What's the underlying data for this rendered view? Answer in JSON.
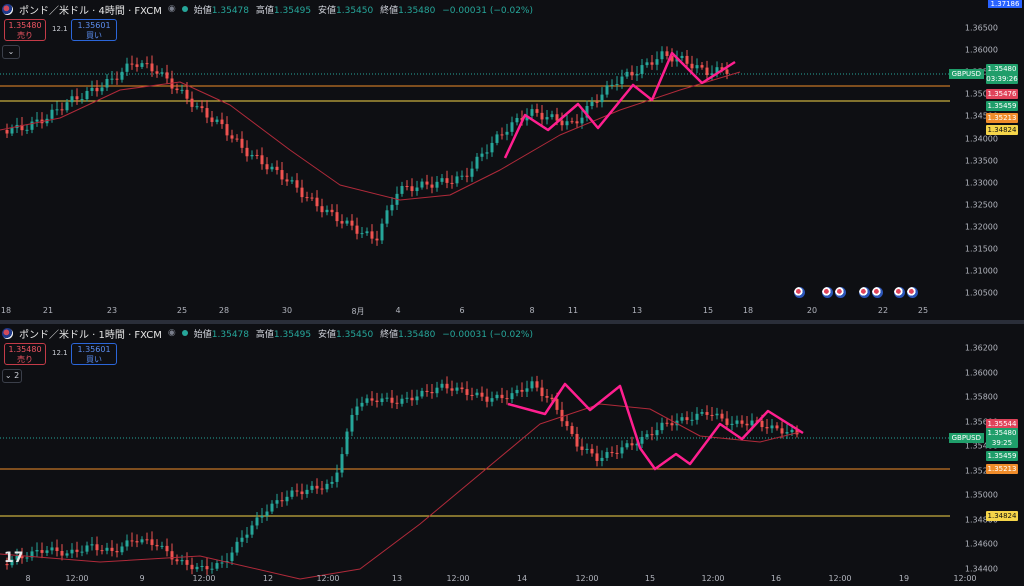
{
  "top": {
    "title": "ポンド／米ドル · 4時間 · FXCM",
    "ohlc": {
      "open_label": "始値",
      "open": "1.35478",
      "high_label": "高値",
      "high": "1.35495",
      "low_label": "安値",
      "low": "1.35450",
      "close_label": "終値",
      "close": "1.35480",
      "change": "−0.00031 (−0.02%)"
    },
    "sell_price": "1.35480",
    "sell_label": "売り",
    "buy_price": "1.35601",
    "buy_label": "買い",
    "spread": "12.1",
    "collapse_label": "⌄",
    "price_ticks": [
      "1.36500",
      "1.36000",
      "1.35500",
      "1.35000",
      "1.34500",
      "1.34000",
      "1.33500",
      "1.33000",
      "1.32500",
      "1.32000",
      "1.31500",
      "1.31000",
      "1.30500"
    ],
    "top_badge": "1.37186",
    "symbol_tag": "GBPUSD",
    "tags": [
      {
        "text": "1.35480\n03:39:26",
        "color": "#1f9e6a"
      },
      {
        "text": "1.35476",
        "color": "#e0435a"
      },
      {
        "text": "1.35459",
        "color": "#1f9e6a"
      },
      {
        "text": "1.35213",
        "color": "#f08c2a"
      },
      {
        "text": "1.34824",
        "color": "#f5d54a"
      }
    ],
    "time_ticks": [
      "18",
      "21",
      "23",
      "25",
      "28",
      "30",
      "8月",
      "4",
      "6",
      "8",
      "11",
      "13",
      "15",
      "18",
      "20",
      "22",
      "25"
    ]
  },
  "bottom": {
    "title": "ポンド／米ドル · 1時間 · FXCM",
    "ohlc": {
      "open_label": "始値",
      "open": "1.35478",
      "high_label": "高値",
      "high": "1.35495",
      "low_label": "安値",
      "low": "1.35450",
      "close_label": "終値",
      "close": "1.35480",
      "change": "−0.00031 (−0.02%)"
    },
    "sell_price": "1.35480",
    "sell_label": "売り",
    "buy_price": "1.35601",
    "buy_label": "買い",
    "spread": "12.1",
    "collapse_label": "⌄ 2",
    "price_ticks": [
      "1.36200",
      "1.36000",
      "1.35800",
      "1.35600",
      "1.35400",
      "1.35200",
      "1.35000",
      "1.34800",
      "1.34600",
      "1.34400"
    ],
    "symbol_tag": "GBPUSD",
    "tags": [
      {
        "text": "1.35544",
        "color": "#e0435a"
      },
      {
        "text": "1.35480\n39:25",
        "color": "#1f9e6a"
      },
      {
        "text": "1.35459",
        "color": "#1f9e6a"
      },
      {
        "text": "1.35213",
        "color": "#f08c2a"
      },
      {
        "text": "1.34824",
        "color": "#f5d54a"
      }
    ],
    "time_ticks": [
      "8",
      "12:00",
      "9",
      "12:00",
      "12",
      "12:00",
      "13",
      "12:00",
      "14",
      "12:00",
      "15",
      "12:00",
      "16",
      "12:00",
      "19",
      "12:00"
    ],
    "logo": "17"
  },
  "colors": {
    "up": "#26a69a",
    "down": "#ef5350",
    "ma": "#b02a3a",
    "zigzag": "#ff1f8f",
    "orange": "#f08c2a",
    "yellow": "#f5d54a",
    "green_dotted": "#26a69a"
  }
}
